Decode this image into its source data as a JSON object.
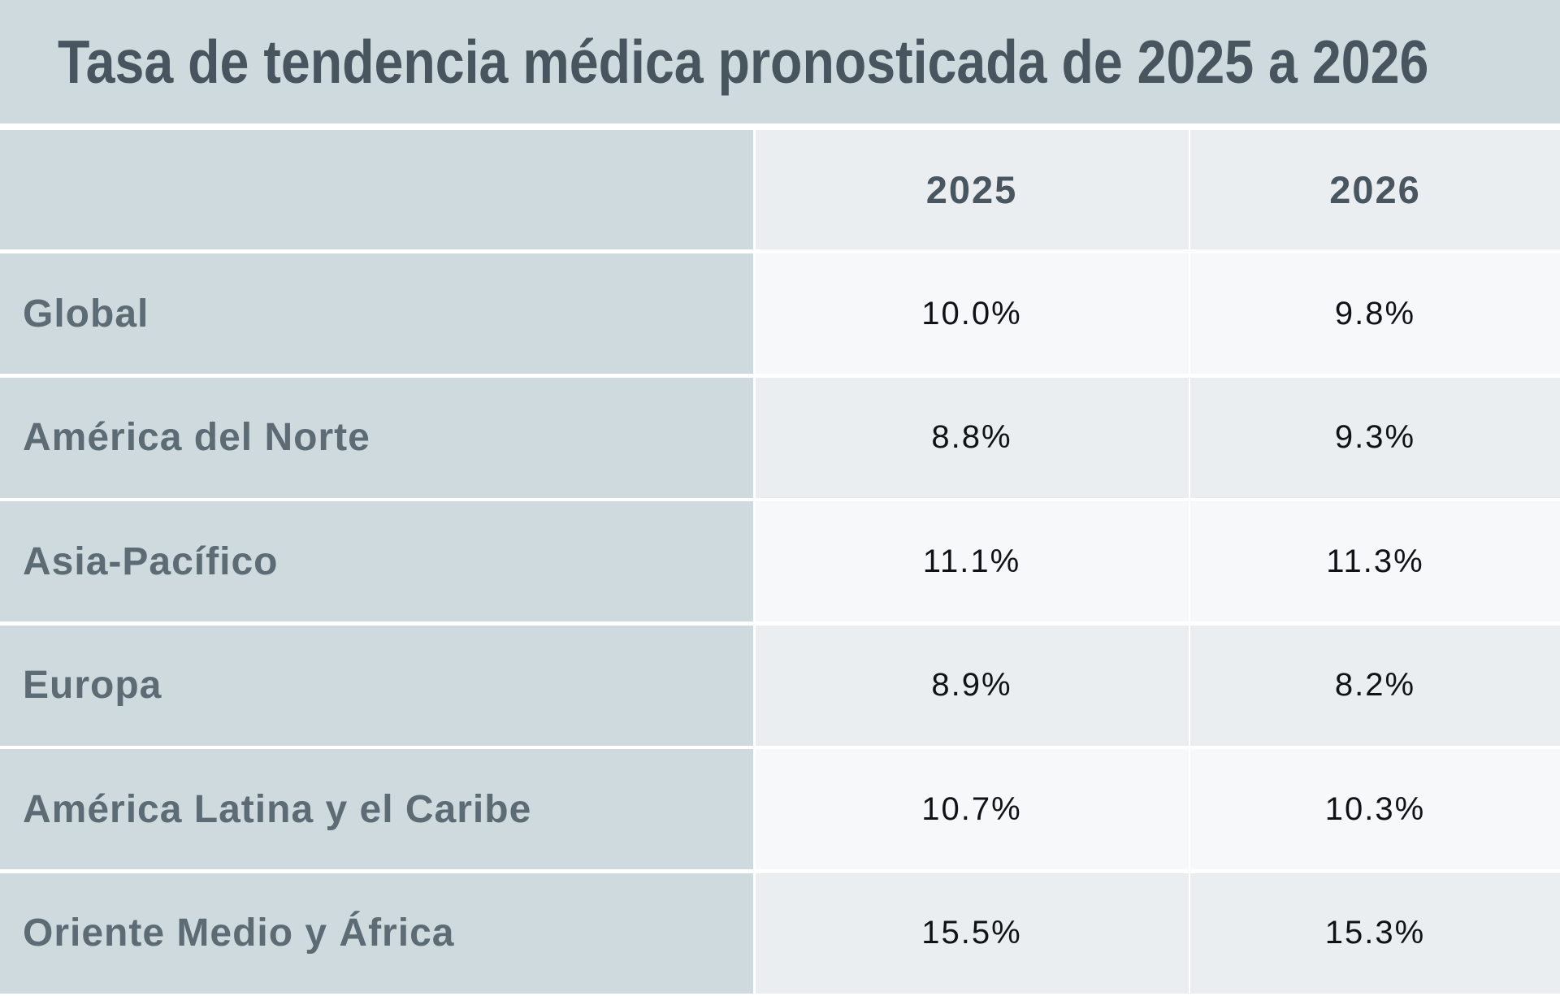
{
  "title": "Tasa de tendencia médica pronosticada de 2025 a 2026",
  "columns": [
    "2025",
    "2026"
  ],
  "rows": [
    {
      "region": "Global",
      "y2025": "10.0%",
      "y2026": "9.8%"
    },
    {
      "region": "América del Norte",
      "y2025": "8.8%",
      "y2026": "9.3%"
    },
    {
      "region": "Asia-Pacífico",
      "y2025": "11.1%",
      "y2026": "11.3%"
    },
    {
      "region": "Europa",
      "y2025": "8.9%",
      "y2026": "8.2%"
    },
    {
      "region": "América Latina y el Caribe",
      "y2025": "10.7%",
      "y2026": "10.3%"
    },
    {
      "region": "Oriente Medio y África",
      "y2025": "15.5%",
      "y2026": "15.3%"
    }
  ],
  "theme": {
    "band_bg": "#cfdade",
    "cell_dark": "#eaeef1",
    "cell_light": "#f6f8f9",
    "gap_color": "#ffffff",
    "title_color": "#48555f",
    "header_color": "#49565f",
    "label_color": "#5c6b74",
    "value_color": "#101316"
  },
  "chart_data": {
    "type": "table",
    "title": "Tasa de tendencia médica pronosticada de 2025 a 2026",
    "categories": [
      "Global",
      "América del Norte",
      "Asia-Pacífico",
      "Europa",
      "América Latina y el Caribe",
      "Oriente Medio y África"
    ],
    "series": [
      {
        "name": "2025",
        "values": [
          10.0,
          8.8,
          11.1,
          8.9,
          10.7,
          15.5
        ]
      },
      {
        "name": "2026",
        "values": [
          9.8,
          9.3,
          11.3,
          8.2,
          10.3,
          15.3
        ]
      }
    ],
    "unit": "%",
    "layout": {
      "grid": "off",
      "legend": "none",
      "row_label_column": true
    }
  }
}
